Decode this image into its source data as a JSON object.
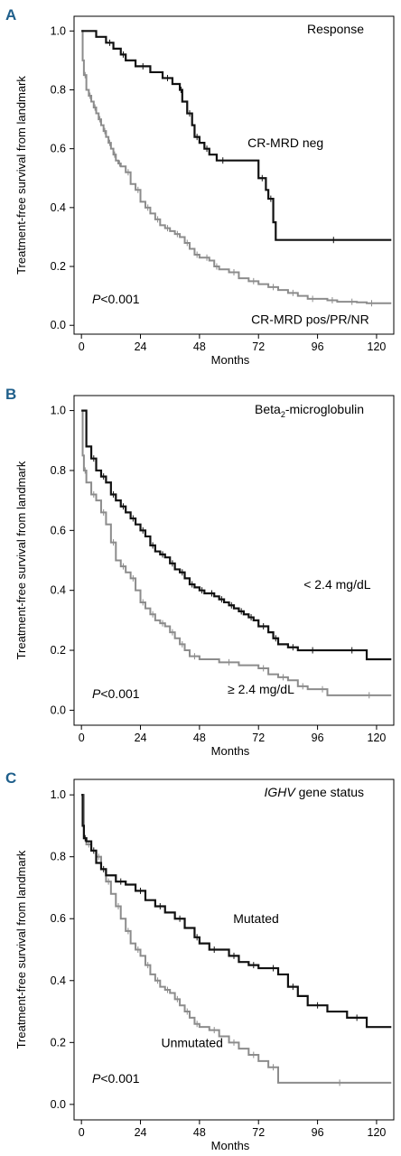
{
  "chart_data": [
    {
      "type": "line",
      "panel": "A",
      "title": "Response",
      "xlabel": "Months",
      "ylabel": "Treatment-free survival from landmark",
      "xticks": [
        "0",
        "24",
        "48",
        "72",
        "96",
        "120"
      ],
      "yticks": [
        "0.0",
        "0.2",
        "0.4",
        "0.6",
        "0.8",
        "1.0"
      ],
      "xlim": [
        -3,
        127
      ],
      "ylim": [
        -0.03,
        1.05
      ],
      "p_value_prefix": "P",
      "p_value_suffix": "<0.001",
      "series": [
        {
          "name": "CR-MRD neg",
          "color": "#111111",
          "x": [
            0,
            6,
            10,
            13,
            16,
            18,
            22,
            28,
            33,
            37,
            40,
            41,
            43,
            45,
            46,
            48,
            50,
            52,
            55,
            60,
            72,
            75,
            76,
            78,
            79,
            126
          ],
          "y": [
            1.0,
            0.98,
            0.96,
            0.94,
            0.92,
            0.9,
            0.88,
            0.86,
            0.84,
            0.82,
            0.8,
            0.76,
            0.72,
            0.68,
            0.64,
            0.62,
            0.6,
            0.58,
            0.56,
            0.56,
            0.5,
            0.46,
            0.43,
            0.35,
            0.29,
            0.29
          ]
        },
        {
          "name": "CR-MRD pos/PR/NR",
          "color": "#8c8c8c",
          "x": [
            0,
            0.5,
            1,
            2,
            3,
            4,
            5,
            6,
            7,
            8,
            9,
            10,
            11,
            12,
            13,
            14,
            15,
            16,
            18,
            20,
            22,
            24,
            26,
            28,
            30,
            32,
            34,
            36,
            38,
            40,
            42,
            44,
            46,
            48,
            50,
            52,
            54,
            56,
            60,
            64,
            68,
            72,
            76,
            80,
            84,
            88,
            92,
            96,
            100,
            104,
            108,
            112,
            116,
            120,
            126
          ],
          "y": [
            1.0,
            0.9,
            0.85,
            0.8,
            0.78,
            0.76,
            0.74,
            0.72,
            0.7,
            0.68,
            0.66,
            0.64,
            0.62,
            0.6,
            0.58,
            0.56,
            0.55,
            0.54,
            0.52,
            0.48,
            0.46,
            0.42,
            0.4,
            0.38,
            0.36,
            0.34,
            0.33,
            0.32,
            0.31,
            0.3,
            0.28,
            0.26,
            0.24,
            0.23,
            0.23,
            0.22,
            0.2,
            0.19,
            0.18,
            0.16,
            0.15,
            0.14,
            0.13,
            0.12,
            0.11,
            0.1,
            0.09,
            0.09,
            0.085,
            0.08,
            0.08,
            0.078,
            0.075,
            0.075,
            0.075
          ]
        }
      ],
      "labels": [
        {
          "text": "CR-MRD neg",
          "x": 83,
          "y": 0.62
        },
        {
          "text": "CR-MRD pos/PR/NR",
          "x": 93,
          "y": 0.02
        }
      ]
    },
    {
      "type": "line",
      "panel": "B",
      "title": "Beta",
      "title_sub": "2",
      "title_rest": "-microglobulin",
      "xlabel": "Months",
      "ylabel": "Treatment-free survival from landmark",
      "xticks": [
        "0",
        "24",
        "48",
        "72",
        "96",
        "120"
      ],
      "yticks": [
        "0.0",
        "0.2",
        "0.4",
        "0.6",
        "0.8",
        "1.0"
      ],
      "xlim": [
        -3,
        127
      ],
      "ylim": [
        -0.05,
        1.05
      ],
      "p_value_prefix": "P",
      "p_value_suffix": "<0.001",
      "series": [
        {
          "name": "< 2.4 mg/dL",
          "color": "#111111",
          "x": [
            0,
            2,
            4,
            6,
            8,
            10,
            12,
            14,
            16,
            18,
            20,
            22,
            24,
            26,
            28,
            30,
            32,
            34,
            36,
            38,
            40,
            42,
            44,
            46,
            48,
            50,
            52,
            54,
            56,
            58,
            60,
            62,
            64,
            66,
            68,
            70,
            72,
            76,
            78,
            80,
            84,
            88,
            92,
            96,
            104,
            116,
            126
          ],
          "y": [
            1.0,
            0.88,
            0.84,
            0.8,
            0.78,
            0.76,
            0.72,
            0.7,
            0.68,
            0.66,
            0.64,
            0.62,
            0.6,
            0.58,
            0.55,
            0.53,
            0.52,
            0.51,
            0.49,
            0.47,
            0.46,
            0.44,
            0.42,
            0.41,
            0.4,
            0.39,
            0.39,
            0.38,
            0.37,
            0.36,
            0.35,
            0.34,
            0.33,
            0.32,
            0.31,
            0.3,
            0.28,
            0.26,
            0.24,
            0.22,
            0.21,
            0.2,
            0.2,
            0.2,
            0.2,
            0.17,
            0.17
          ]
        },
        {
          "name": "≥ 2.4 mg/dL",
          "color": "#8c8c8c",
          "x": [
            0,
            0.5,
            1,
            2,
            4,
            6,
            8,
            10,
            12,
            14,
            16,
            18,
            20,
            22,
            24,
            26,
            28,
            30,
            32,
            34,
            36,
            38,
            40,
            42,
            44,
            48,
            56,
            64,
            72,
            76,
            80,
            84,
            88,
            92,
            96,
            100,
            108,
            126
          ],
          "y": [
            1.0,
            0.85,
            0.8,
            0.76,
            0.72,
            0.7,
            0.66,
            0.62,
            0.56,
            0.5,
            0.48,
            0.46,
            0.44,
            0.4,
            0.36,
            0.34,
            0.32,
            0.3,
            0.29,
            0.28,
            0.26,
            0.24,
            0.22,
            0.2,
            0.18,
            0.17,
            0.16,
            0.15,
            0.14,
            0.12,
            0.11,
            0.1,
            0.08,
            0.07,
            0.07,
            0.05,
            0.05,
            0.05
          ]
        }
      ],
      "labels": [
        {
          "text": "< 2.4 mg/dL",
          "x": 104,
          "y": 0.42
        },
        {
          "text": "≥ 2.4 mg/dL",
          "x": 73,
          "y": 0.07
        }
      ]
    },
    {
      "type": "line",
      "panel": "C",
      "title": "IGHV",
      "title_rest": " gene status",
      "xlabel": "Months",
      "ylabel": "Treatment-free survival from landmark",
      "xticks": [
        "0",
        "24",
        "48",
        "72",
        "96",
        "120"
      ],
      "yticks": [
        "0.0",
        "0.2",
        "0.4",
        "0.6",
        "0.8",
        "1.0"
      ],
      "xlim": [
        -3,
        127
      ],
      "ylim": [
        -0.05,
        1.05
      ],
      "p_value_prefix": "P",
      "p_value_suffix": "<0.001",
      "series": [
        {
          "name": "Mutated",
          "color": "#111111",
          "x": [
            0,
            0.5,
            1,
            2,
            4,
            6,
            8,
            10,
            14,
            18,
            22,
            26,
            30,
            34,
            38,
            42,
            46,
            48,
            52,
            56,
            60,
            64,
            68,
            72,
            76,
            80,
            84,
            88,
            92,
            100,
            108,
            116,
            126
          ],
          "y": [
            1.0,
            0.9,
            0.86,
            0.85,
            0.82,
            0.78,
            0.76,
            0.74,
            0.72,
            0.71,
            0.69,
            0.66,
            0.64,
            0.62,
            0.6,
            0.57,
            0.54,
            0.52,
            0.5,
            0.5,
            0.48,
            0.46,
            0.45,
            0.44,
            0.44,
            0.42,
            0.38,
            0.35,
            0.32,
            0.3,
            0.28,
            0.25,
            0.25
          ]
        },
        {
          "name": "Unmutated",
          "color": "#8c8c8c",
          "x": [
            0,
            1,
            2,
            4,
            6,
            8,
            10,
            12,
            14,
            16,
            18,
            20,
            22,
            24,
            26,
            28,
            30,
            32,
            34,
            36,
            38,
            40,
            42,
            44,
            46,
            48,
            52,
            56,
            60,
            64,
            68,
            72,
            76,
            80,
            84,
            126
          ],
          "y": [
            1.0,
            0.86,
            0.84,
            0.82,
            0.8,
            0.76,
            0.72,
            0.68,
            0.64,
            0.6,
            0.56,
            0.52,
            0.5,
            0.48,
            0.45,
            0.42,
            0.4,
            0.38,
            0.37,
            0.36,
            0.34,
            0.32,
            0.3,
            0.28,
            0.26,
            0.25,
            0.24,
            0.22,
            0.2,
            0.18,
            0.16,
            0.14,
            0.12,
            0.07,
            0.07,
            0.07
          ]
        }
      ],
      "labels": [
        {
          "text": "Mutated",
          "x": 71,
          "y": 0.6
        },
        {
          "text": "Unmutated",
          "x": 45,
          "y": 0.2
        }
      ]
    }
  ]
}
